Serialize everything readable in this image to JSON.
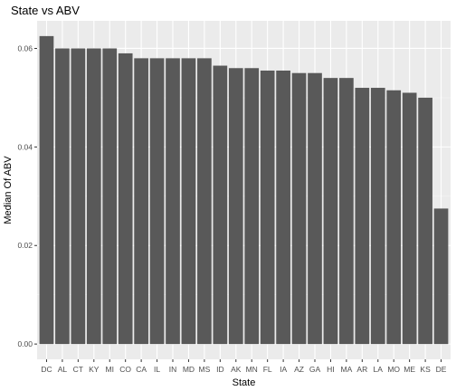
{
  "chart_data": {
    "type": "bar",
    "title": "State vs ABV",
    "xlabel": "State",
    "ylabel": "Median Of ABV",
    "categories": [
      "DC",
      "AL",
      "CT",
      "KY",
      "MI",
      "CO",
      "CA",
      "IL",
      "IN",
      "MD",
      "MS",
      "ID",
      "AK",
      "MN",
      "FL",
      "IA",
      "AZ",
      "GA",
      "HI",
      "MA",
      "AR",
      "LA",
      "MO",
      "ME",
      "KS",
      "DE"
    ],
    "values": [
      0.0625,
      0.06,
      0.06,
      0.06,
      0.06,
      0.059,
      0.058,
      0.058,
      0.058,
      0.058,
      0.058,
      0.0565,
      0.056,
      0.056,
      0.0555,
      0.0555,
      0.055,
      0.055,
      0.054,
      0.054,
      0.052,
      0.052,
      0.0515,
      0.051,
      0.05,
      0.0275
    ],
    "yticks": [
      0.0,
      0.02,
      0.04,
      0.06
    ],
    "ytick_labels": [
      "0.00",
      "0.02",
      "0.04",
      "0.06"
    ],
    "ylim": [
      -0.0031,
      0.0656
    ],
    "grid": true,
    "colors": {
      "panel_bg": "#ebebeb",
      "grid_major": "#ffffff",
      "grid_minor": "#f5f5f5",
      "bar": "#595959"
    }
  }
}
